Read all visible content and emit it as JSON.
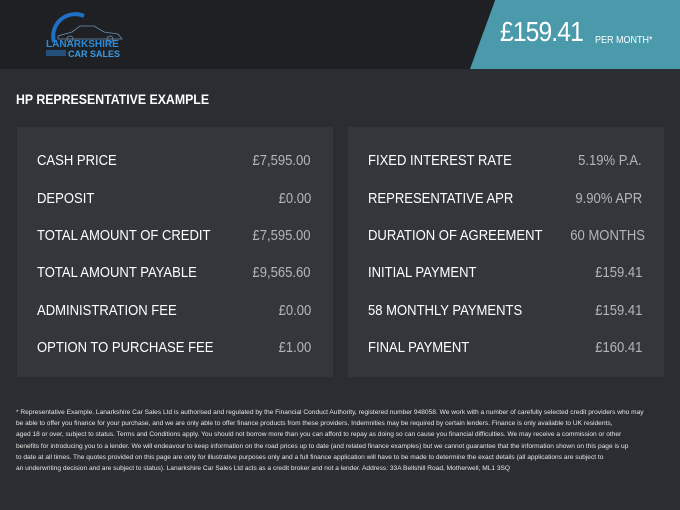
{
  "header": {
    "brand": "LANARKSHIRE CAR SALES",
    "brand_line1": "LANARKSHIRE",
    "brand_line2": "CAR SALES",
    "monthly_price": "£159.41",
    "per_month_label": "PER MONTH*",
    "accent": "#4b9aab"
  },
  "section_title": "HP REPRESENTATIVE EXAMPLE",
  "left_panel": [
    {
      "label": "CASH PRICE",
      "value": "£7,595.00"
    },
    {
      "label": "DEPOSIT",
      "value": "£0.00"
    },
    {
      "label": "TOTAL AMOUNT OF CREDIT",
      "value": "£7,595.00"
    },
    {
      "label": "TOTAL AMOUNT PAYABLE",
      "value": "£9,565.60"
    },
    {
      "label": "ADMINISTRATION FEE",
      "value": "£0.00"
    },
    {
      "label": "OPTION TO PURCHASE FEE",
      "value": "£1.00"
    }
  ],
  "right_panel": [
    {
      "label": "FIXED INTEREST RATE",
      "value": "5.19% P.A."
    },
    {
      "label": "REPRESENTATIVE APR",
      "value": "9.90% APR"
    },
    {
      "label": "DURATION OF AGREEMENT",
      "value": "60 MONTHS"
    },
    {
      "label": "INITIAL PAYMENT",
      "value": "£159.41"
    },
    {
      "label": "58 MONTHLY PAYMENTS",
      "value": "£159.41"
    },
    {
      "label": "FINAL PAYMENT",
      "value": "£160.41"
    }
  ],
  "disclaimer_lines": [
    "* Representative Example. Lanarkshire Car Sales Ltd is authorised and regulated by the Financial Conduct Authority, registered number 948058. We work with a number of carefully selected credit providers who may",
    "be able to offer you finance for your purchase, and we are only able to offer finance products from these providers. Indemnities may be required by certain lenders. Finance is only available to UK residents,",
    "aged 18 or over, subject to status. Terms and Conditions apply. You should not borrow more than you can afford to repay as doing so can cause you financial difficulties. We may receive a commission or other",
    "benefits for introducing you to a lender. We will endeavour to keep information on the road prices up to date (and related finance examples) but we cannot guarantee that the information shown on this page is up",
    "to date at all times. The quotes provided on this page are only for illustrative purposes only and a full finance application will have to be made to determine the exact details (all applications are subject to",
    "an underwriting decision and are subject to status). Lanarkshire Car Sales Ltd acts as a credit broker and not a lender. Address: 33A Bellshill Road, Motherwell, ML1 3SQ"
  ]
}
